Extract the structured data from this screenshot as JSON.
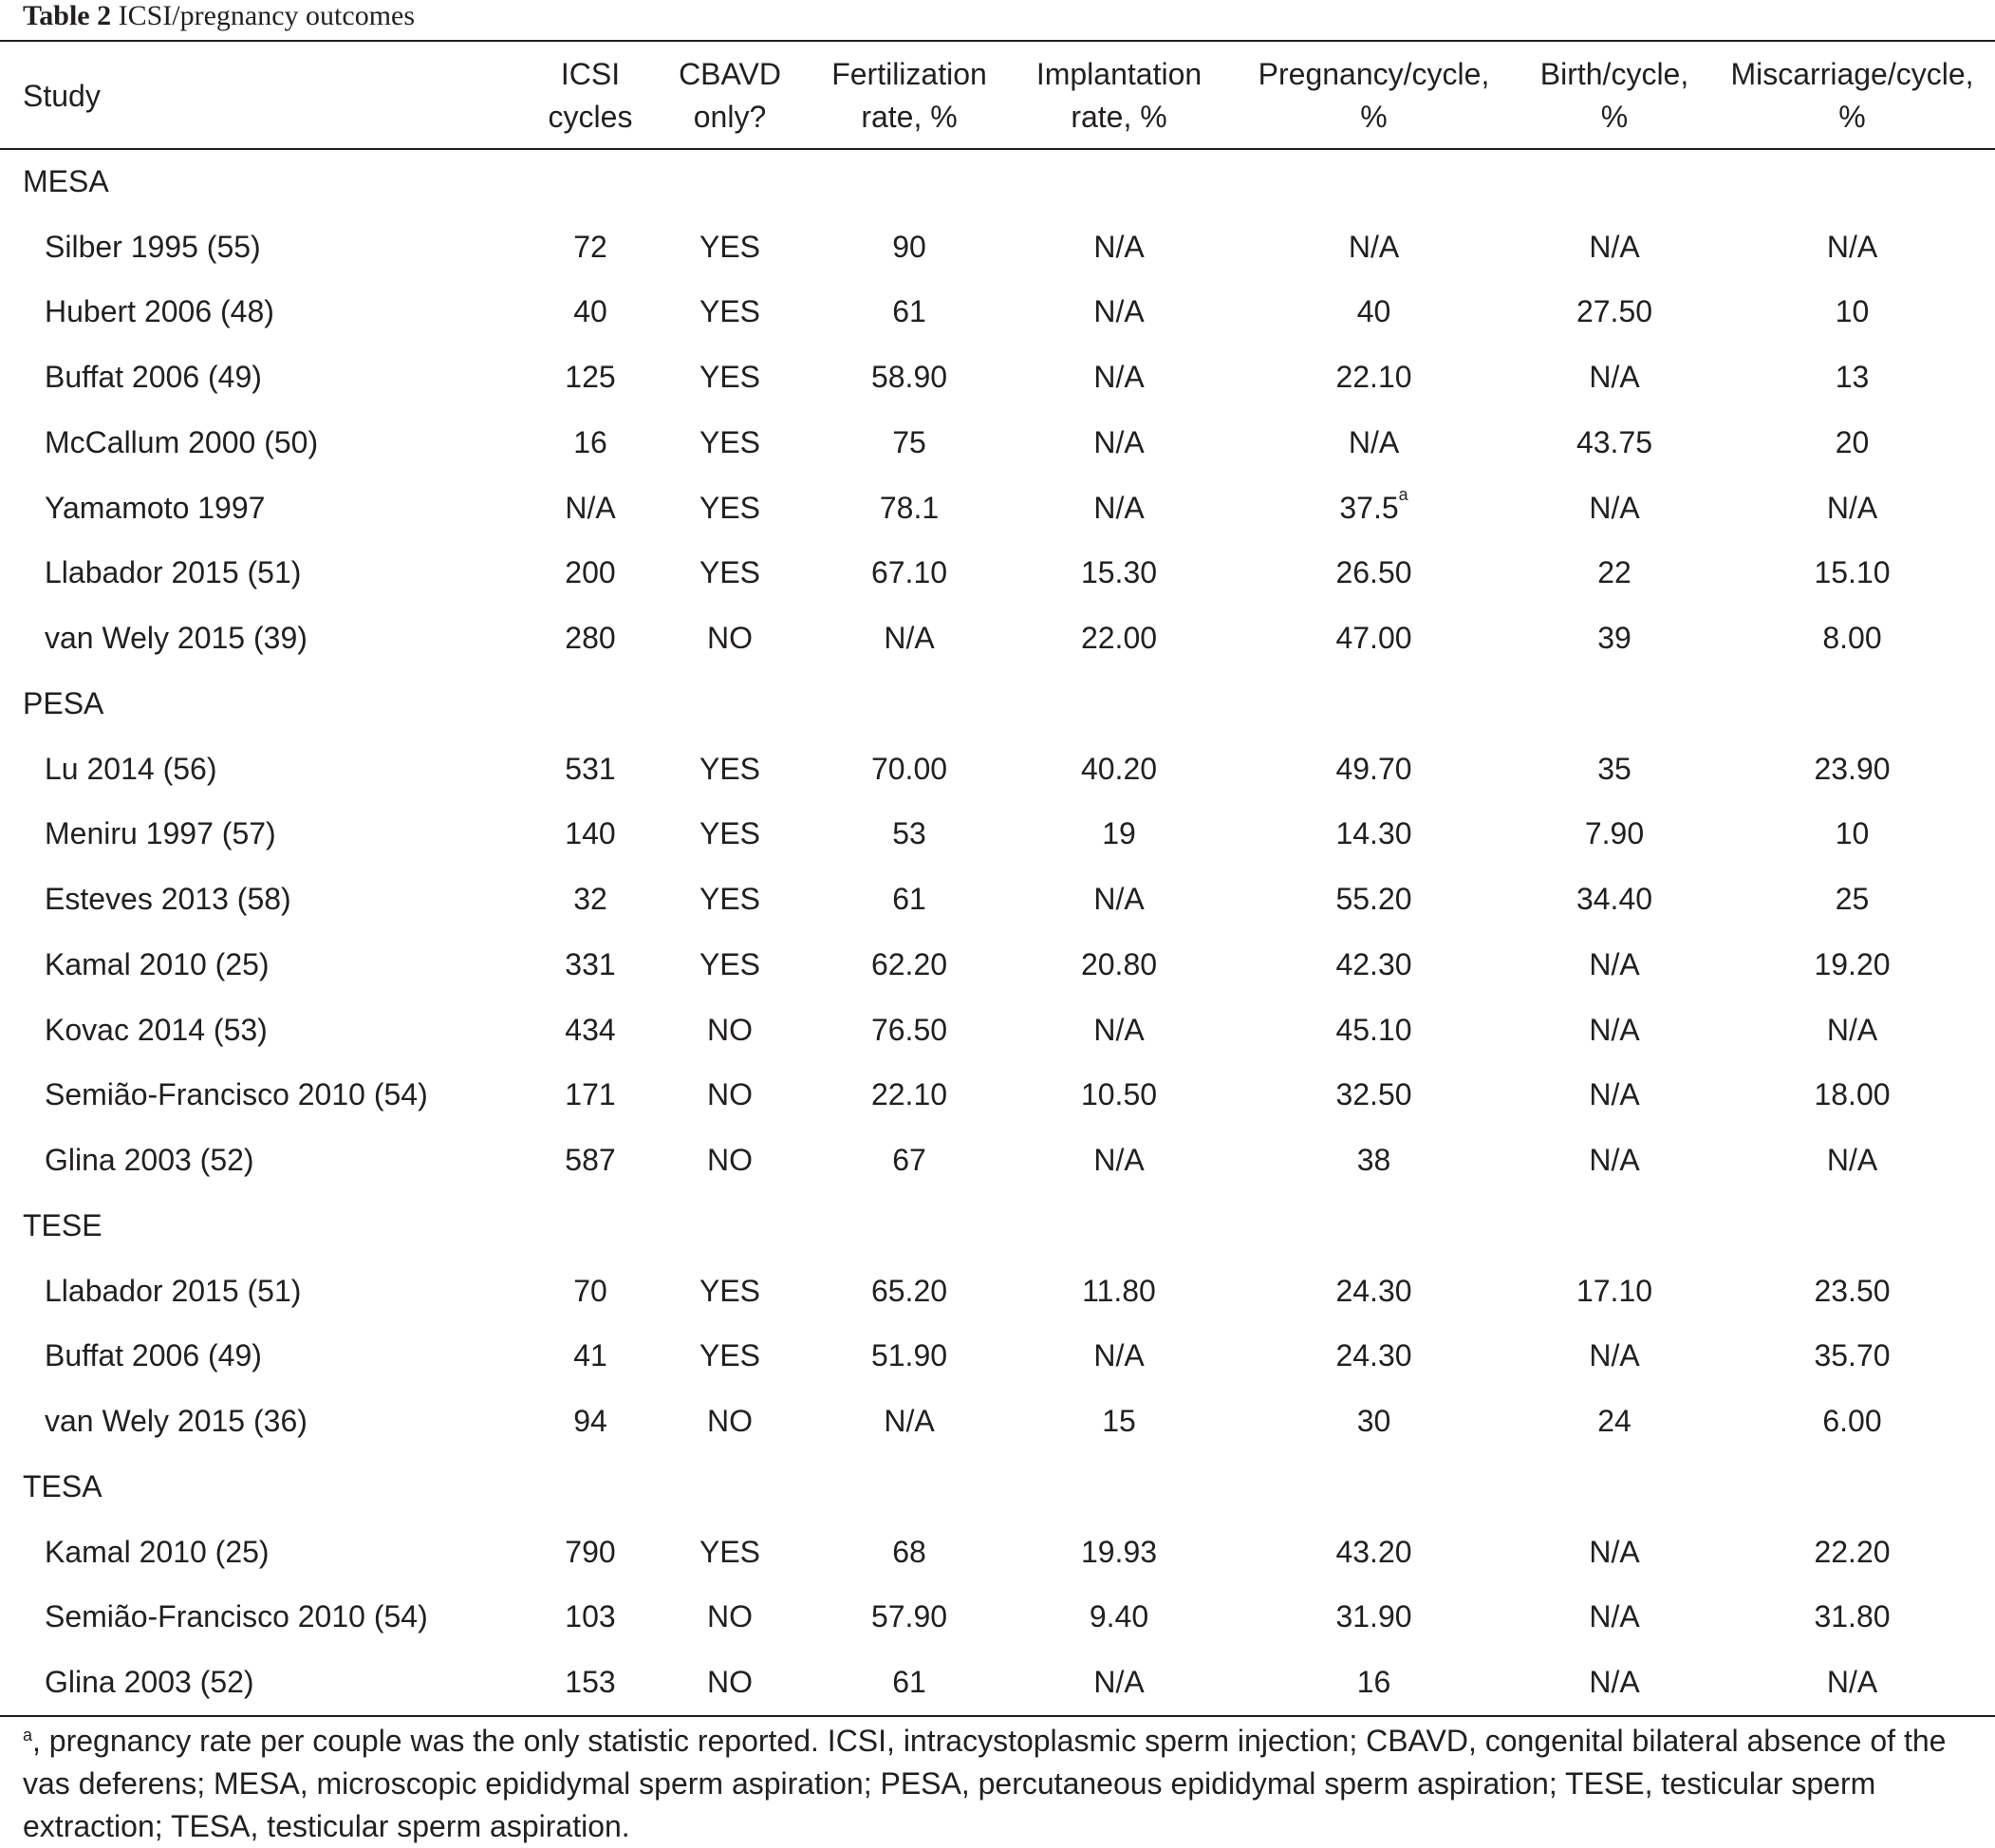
{
  "caption": {
    "label": "Table 2",
    "title": "ICSI/pregnancy outcomes"
  },
  "headers": {
    "study": "Study",
    "icsi": [
      "ICSI",
      "cycles"
    ],
    "cbavd": [
      "CBAVD",
      "only?"
    ],
    "fert": [
      "Fertilization",
      "rate, %"
    ],
    "impl": [
      "Implantation",
      "rate, %"
    ],
    "preg": [
      "Pregnancy/cycle,",
      "%"
    ],
    "birth": [
      "Birth/cycle,",
      "%"
    ],
    "misc": [
      "Miscarriage/cycle,",
      "%"
    ]
  },
  "groups": [
    {
      "name": "MESA",
      "rows": [
        [
          "Silber 1995 (55)",
          "72",
          "YES",
          "90",
          "N/A",
          "N/A",
          "N/A",
          "N/A"
        ],
        [
          "Hubert 2006 (48)",
          "40",
          "YES",
          "61",
          "N/A",
          "40",
          "27.50",
          "10"
        ],
        [
          "Buffat 2006 (49)",
          "125",
          "YES",
          "58.90",
          "N/A",
          "22.10",
          "N/A",
          "13"
        ],
        [
          "McCallum 2000 (50)",
          "16",
          "YES",
          "75",
          "N/A",
          "N/A",
          "43.75",
          "20"
        ],
        [
          "Yamamoto 1997",
          "N/A",
          "YES",
          "78.1",
          "N/A",
          "37.5",
          "N/A",
          "N/A"
        ],
        [
          "Llabador 2015 (51)",
          "200",
          "YES",
          "67.10",
          "15.30",
          "26.50",
          "22",
          "15.10"
        ],
        [
          "van Wely 2015 (39)",
          "280",
          "NO",
          "N/A",
          "22.00",
          "47.00",
          "39",
          "8.00"
        ]
      ]
    },
    {
      "name": "PESA",
      "rows": [
        [
          "Lu 2014 (56)",
          "531",
          "YES",
          "70.00",
          "40.20",
          "49.70",
          "35",
          "23.90"
        ],
        [
          "Meniru 1997 (57)",
          "140",
          "YES",
          "53",
          "19",
          "14.30",
          "7.90",
          "10"
        ],
        [
          "Esteves 2013 (58)",
          "32",
          "YES",
          "61",
          "N/A",
          "55.20",
          "34.40",
          "25"
        ],
        [
          "Kamal 2010 (25)",
          "331",
          "YES",
          "62.20",
          "20.80",
          "42.30",
          "N/A",
          "19.20"
        ],
        [
          "Kovac 2014 (53)",
          "434",
          "NO",
          "76.50",
          "N/A",
          "45.10",
          "N/A",
          "N/A"
        ],
        [
          "Semião-Francisco 2010 (54)",
          "171",
          "NO",
          "22.10",
          "10.50",
          "32.50",
          "N/A",
          "18.00"
        ],
        [
          "Glina 2003 (52)",
          "587",
          "NO",
          "67",
          "N/A",
          "38",
          "N/A",
          "N/A"
        ]
      ]
    },
    {
      "name": "TESE",
      "rows": [
        [
          "Llabador 2015 (51)",
          "70",
          "YES",
          "65.20",
          "11.80",
          "24.30",
          "17.10",
          "23.50"
        ],
        [
          "Buffat 2006 (49)",
          "41",
          "YES",
          "51.90",
          "N/A",
          "24.30",
          "N/A",
          "35.70"
        ],
        [
          "van Wely 2015 (36)",
          "94",
          "NO",
          "N/A",
          "15",
          "30",
          "24",
          "6.00"
        ]
      ]
    },
    {
      "name": "TESA",
      "rows": [
        [
          "Kamal 2010 (25)",
          "790",
          "YES",
          "68",
          "19.93",
          "43.20",
          "N/A",
          "22.20"
        ],
        [
          "Semião-Francisco 2010 (54)",
          "103",
          "NO",
          "57.90",
          "9.40",
          "31.90",
          "N/A",
          "31.80"
        ],
        [
          "Glina 2003 (52)",
          "153",
          "NO",
          "61",
          "N/A",
          "16",
          "N/A",
          "N/A"
        ]
      ]
    }
  ],
  "superscripts": {
    "yamamoto_preg": "a"
  },
  "footnote": {
    "marker": "a",
    "text": ", pregnancy rate per couple was the only statistic reported. ICSI, intracystoplasmic sperm injection; CBAVD, congenital bilateral absence of the vas deferens; MESA, microscopic epididymal sperm aspiration; PESA, percutaneous epididymal sperm aspiration; TESE, testicular sperm extraction; TESA, testicular sperm aspiration."
  }
}
